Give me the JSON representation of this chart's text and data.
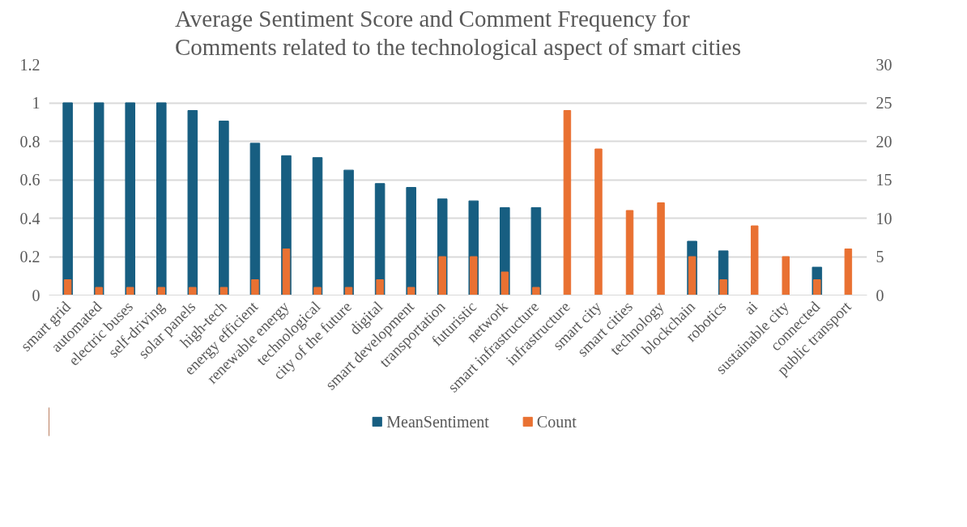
{
  "chart_data": {
    "type": "bar",
    "title": "Average Sentiment Score and Comment Frequency for\nComments related to the technological aspect of smart cities",
    "categories": [
      "smart grid",
      "automated",
      "electric buses",
      "self-driving",
      "solar panels",
      "high-tech",
      "energy efficient",
      "renewable energy",
      "technological",
      "city of the future",
      "digital",
      "smart development",
      "transportation",
      "futuristic",
      "network",
      "smart infrastructure",
      "infrastructure",
      "smart city",
      "smart cities",
      "technology",
      "blockchain",
      "robotics",
      "ai",
      "sustainable city",
      "connected",
      "public transport"
    ],
    "series": [
      {
        "name": "MeanSentiment",
        "color": "#175e81",
        "values": [
          1,
          1,
          1,
          1,
          0.96,
          0.905,
          0.79,
          0.725,
          0.715,
          0.65,
          0.58,
          0.56,
          0.5,
          0.49,
          0.455,
          0.455,
          null,
          null,
          null,
          null,
          0.28,
          0.23,
          null,
          null,
          0.145,
          null
        ]
      },
      {
        "name": "Count",
        "color": "#e97132",
        "axis": "y2",
        "values": [
          2,
          1,
          1,
          1,
          1,
          1,
          2,
          6,
          1,
          1,
          2,
          1,
          5,
          5,
          3,
          1,
          24,
          19,
          11,
          12,
          5,
          2,
          9,
          5,
          2,
          6
        ]
      }
    ],
    "ylim": [
      0,
      1.2
    ],
    "yticks": [
      0,
      0.2,
      0.4,
      0.6,
      0.8,
      1,
      1.2
    ],
    "y2lim": [
      0,
      30
    ],
    "y2ticks": [
      0,
      5,
      10,
      15,
      20,
      25,
      30
    ],
    "grid": "y",
    "legend": "bottom"
  }
}
